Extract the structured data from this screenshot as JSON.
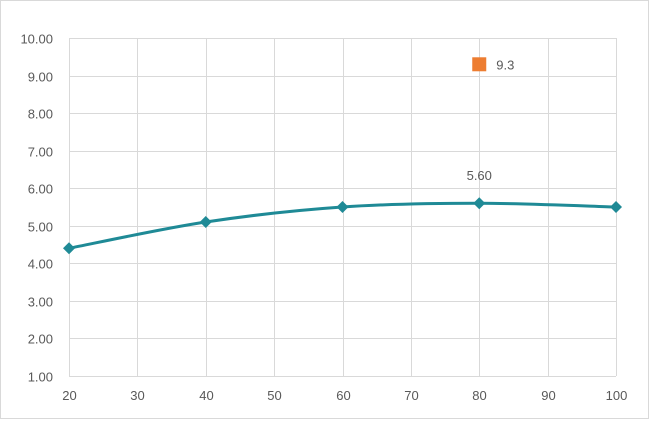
{
  "chart_data": {
    "type": "line",
    "title": "",
    "xlabel": "",
    "ylabel": "",
    "xlim": [
      20,
      100
    ],
    "ylim": [
      1,
      10
    ],
    "x_ticks": [
      "20",
      "30",
      "40",
      "50",
      "60",
      "70",
      "80",
      "90",
      "100"
    ],
    "x_tick_values": [
      20,
      30,
      40,
      50,
      60,
      70,
      80,
      90,
      100
    ],
    "y_ticks": [
      "1.00",
      "2.00",
      "3.00",
      "4.00",
      "5.00",
      "6.00",
      "7.00",
      "8.00",
      "9.00",
      "10.00"
    ],
    "y_tick_values": [
      1,
      2,
      3,
      4,
      5,
      6,
      7,
      8,
      9,
      10
    ],
    "grid": true,
    "legend": "none",
    "series": [
      {
        "type": "smooth-line",
        "marker": "diamond",
        "color": "#1f8a96",
        "x": [
          20,
          40,
          60,
          80,
          100
        ],
        "values": [
          4.4,
          5.1,
          5.5,
          5.6,
          5.5
        ],
        "data_labels": [
          {
            "x": 80,
            "y": 5.6,
            "text": "5.60"
          }
        ]
      },
      {
        "type": "scatter",
        "marker": "square",
        "color": "#ed7d31",
        "x": [
          80
        ],
        "values": [
          9.3
        ],
        "data_labels": [
          {
            "x": 80,
            "y": 9.3,
            "text": "9.3"
          }
        ]
      }
    ]
  }
}
